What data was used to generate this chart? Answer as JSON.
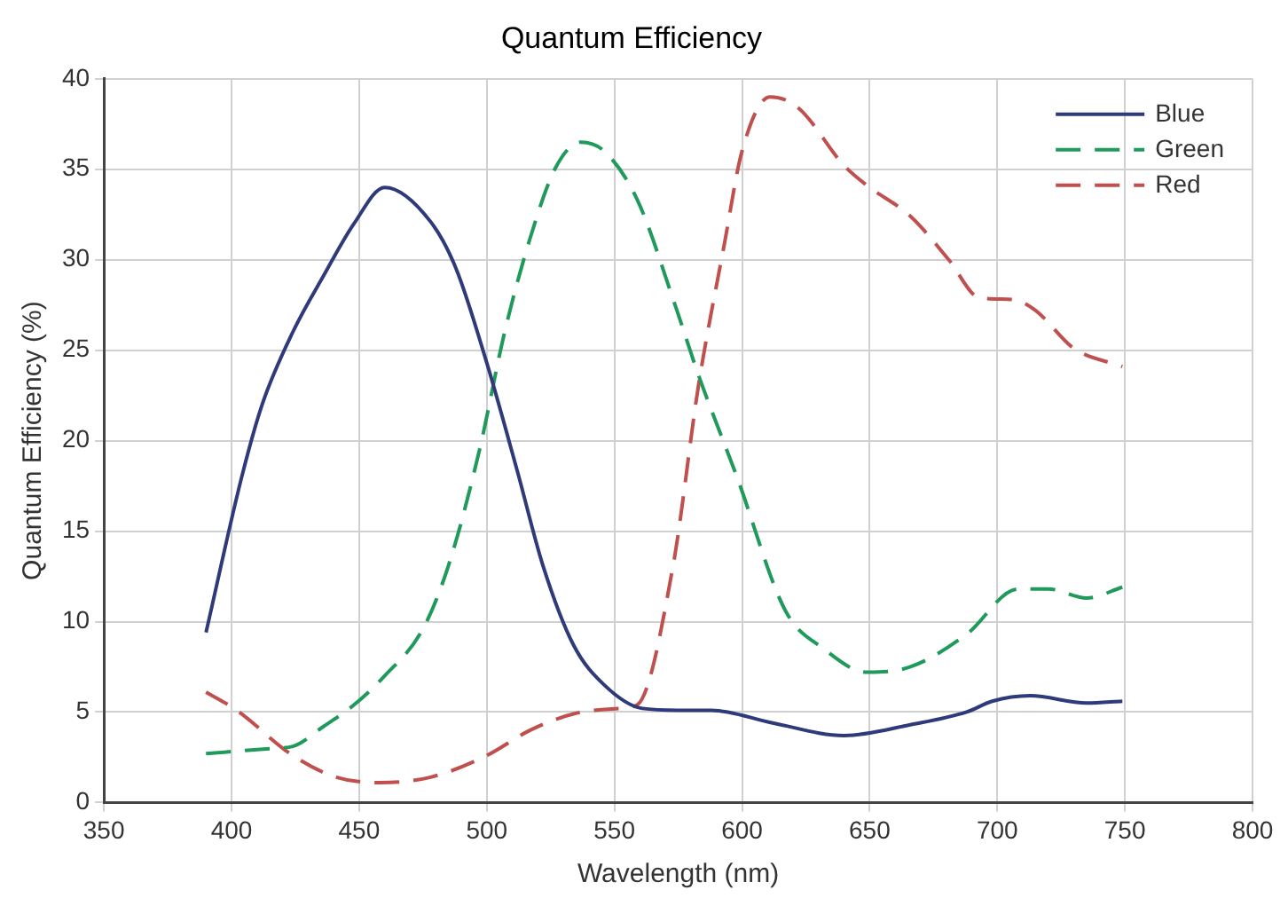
{
  "chart_data": {
    "type": "line",
    "title": "Quantum Efficiency",
    "xlabel": "Wavelength (nm)",
    "ylabel": "Quantum Efficiency (%)",
    "xlim": [
      350,
      800
    ],
    "xticks": [
      350,
      400,
      450,
      500,
      550,
      600,
      650,
      700,
      750,
      800
    ],
    "ylim": [
      0,
      40
    ],
    "yticks": [
      0,
      5,
      10,
      15,
      20,
      25,
      30,
      35,
      40
    ],
    "grid": true,
    "legend": "top right",
    "marker": "none",
    "series": [
      {
        "name": "Blue",
        "color": "#2e3a7a",
        "line_style": "solid",
        "x": [
          390,
          404,
          412,
          424,
          436,
          448,
          460,
          478,
          488,
          500,
          512,
          522,
          534,
          546,
          561,
          576,
          588,
          612,
          640,
          666,
          688,
          698,
          713,
          735,
          749
        ],
        "values": [
          9.4,
          18,
          22,
          26,
          29.1,
          32,
          34,
          32.1,
          29.5,
          24.3,
          18.3,
          13.1,
          8.7,
          6.5,
          5.2,
          5.1,
          5.1,
          4.4,
          3.7,
          4.3,
          5,
          5.6,
          5.9,
          5.5,
          5.6
        ]
      },
      {
        "name": "Green",
        "color": "#1f9a5a",
        "line_style": "dashed",
        "x": [
          390,
          417,
          424,
          436,
          448,
          460,
          475,
          485,
          497,
          507,
          517,
          527,
          537,
          546,
          559,
          574,
          583,
          598,
          617,
          632,
          649,
          666,
          688,
          708,
          720,
          735,
          749
        ],
        "values": [
          2.7,
          3,
          3.1,
          4.2,
          5.4,
          7,
          9.6,
          13.1,
          19.4,
          26,
          31.2,
          35.1,
          36.5,
          36,
          33.3,
          27.4,
          23.6,
          18,
          10.6,
          8.5,
          7.2,
          7.5,
          9.3,
          11.8,
          11.8,
          11.3,
          11.9
        ]
      },
      {
        "name": "Red",
        "color": "#c0504d",
        "line_style": "dashed",
        "x": [
          390,
          402,
          424,
          441,
          458,
          478,
          500,
          517,
          534,
          552,
          559,
          573,
          583,
          593,
          600,
          611,
          622,
          640,
          649,
          666,
          681,
          693,
          706,
          715,
          730,
          749
        ],
        "values": [
          6.1,
          5.1,
          2.6,
          1.4,
          1.1,
          1.4,
          2.6,
          4,
          4.9,
          5.2,
          5.4,
          13.1,
          23.1,
          30.8,
          36,
          39,
          38.4,
          35.2,
          34.1,
          32.4,
          30,
          27.9,
          27.8,
          27.2,
          25.1,
          24.1
        ]
      }
    ]
  }
}
